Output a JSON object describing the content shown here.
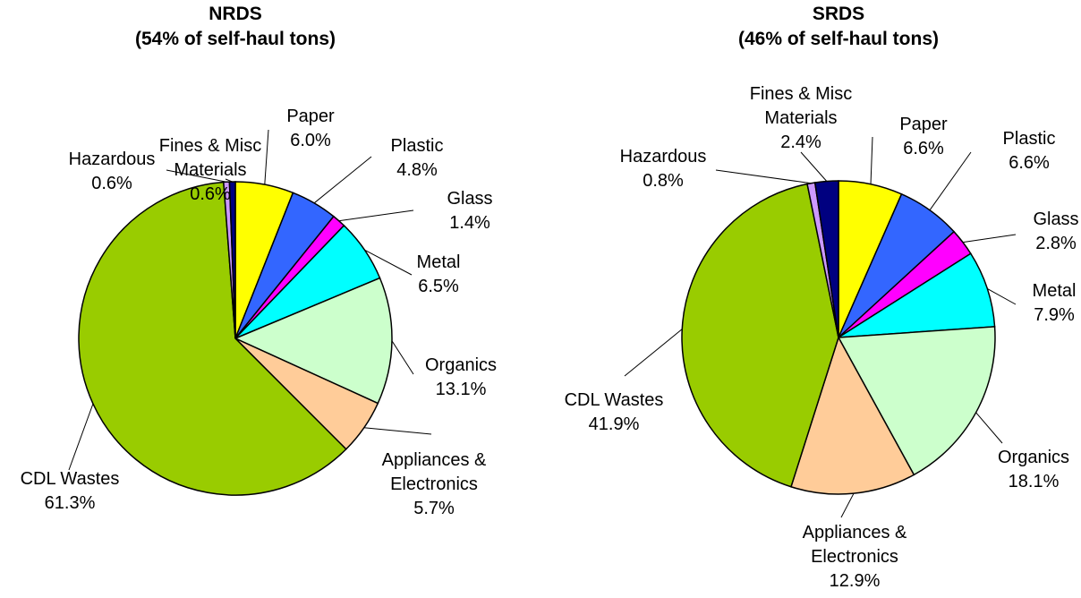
{
  "chart_data": [
    {
      "type": "pie",
      "title": "NRDS",
      "subtitle": "(54% of self-haul tons)",
      "categories": [
        "Paper",
        "Plastic",
        "Glass",
        "Metal",
        "Organics",
        "Appliances & Electronics",
        "CDL Wastes",
        "Hazardous",
        "Fines & Misc Materials"
      ],
      "values": [
        6.0,
        4.8,
        1.4,
        6.5,
        13.1,
        5.7,
        61.3,
        0.6,
        0.6
      ],
      "value_labels": [
        "6.0%",
        "4.8%",
        "1.4%",
        "6.5%",
        "13.1%",
        "5.7%",
        "61.3%",
        "0.6%",
        "0.6%"
      ],
      "colors": [
        "#ffff00",
        "#3366ff",
        "#ff00ff",
        "#00ffff",
        "#ccffcc",
        "#ffcc99",
        "#99cc00",
        "#cc99ff",
        "#000080"
      ]
    },
    {
      "type": "pie",
      "title": "SRDS",
      "subtitle": "(46% of self-haul tons)",
      "categories": [
        "Paper",
        "Plastic",
        "Glass",
        "Metal",
        "Organics",
        "Appliances & Electronics",
        "CDL Wastes",
        "Hazardous",
        "Fines & Misc Materials"
      ],
      "values": [
        6.6,
        6.6,
        2.8,
        7.9,
        18.1,
        12.9,
        41.9,
        0.8,
        2.4
      ],
      "value_labels": [
        "6.6%",
        "6.6%",
        "2.8%",
        "7.9%",
        "18.1%",
        "12.9%",
        "41.9%",
        "0.8%",
        "2.4%"
      ],
      "colors": [
        "#ffff00",
        "#3366ff",
        "#ff00ff",
        "#00ffff",
        "#ccffcc",
        "#ffcc99",
        "#99cc00",
        "#cc99ff",
        "#000080"
      ]
    }
  ]
}
